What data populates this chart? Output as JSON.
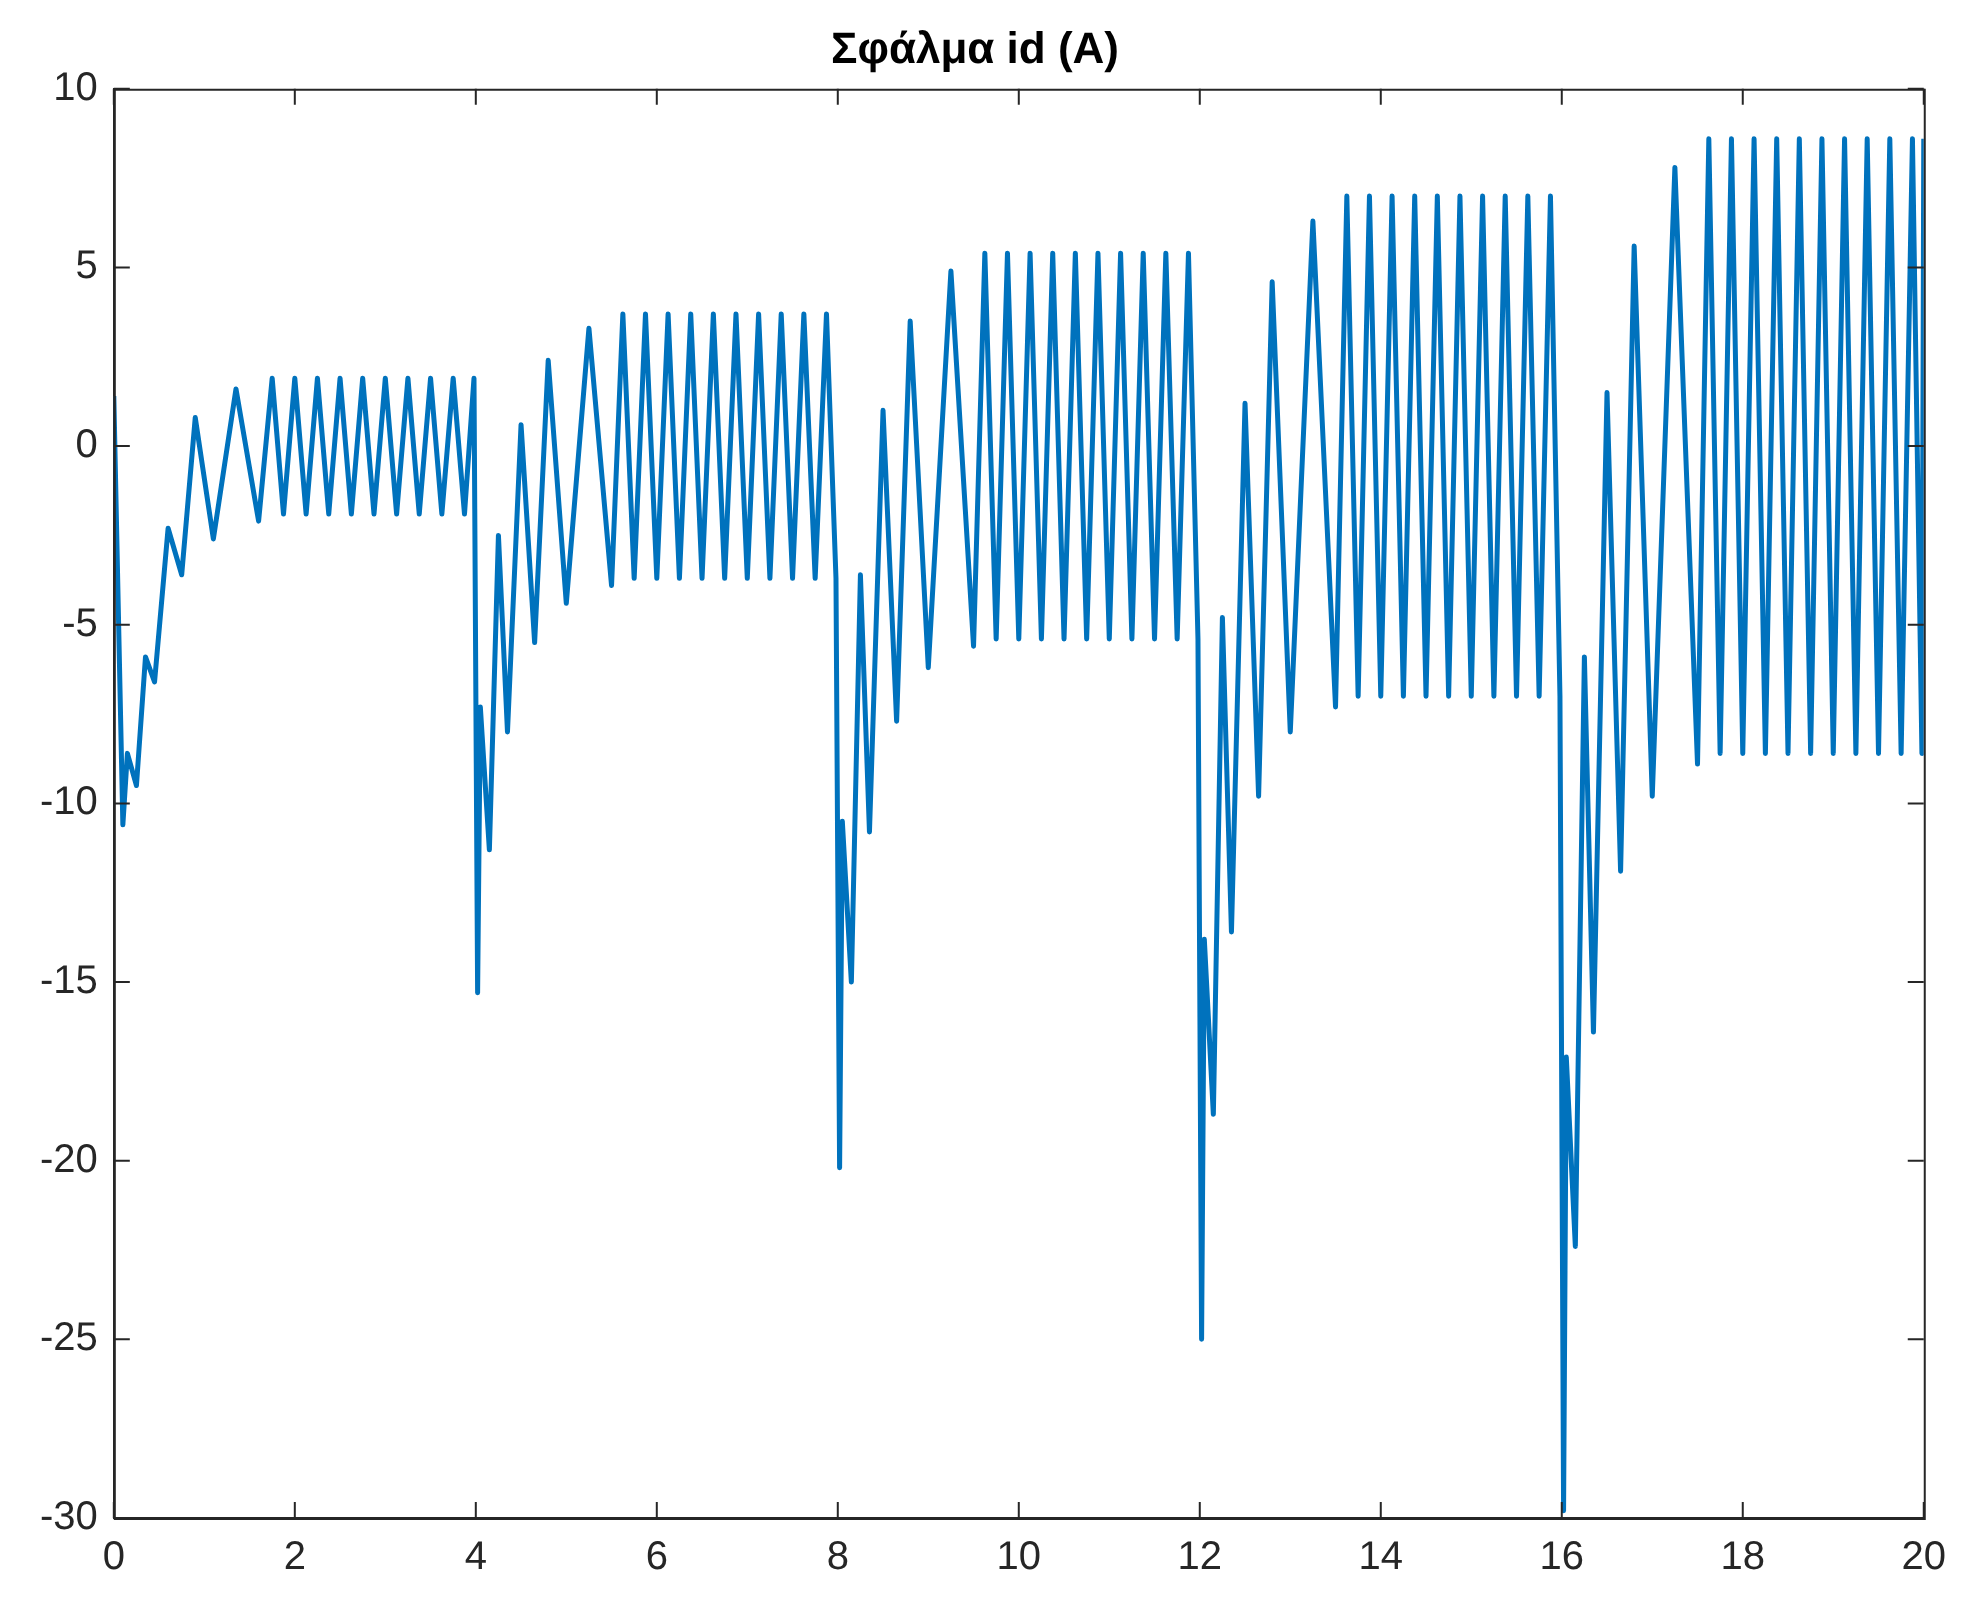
{
  "chart_data": {
    "type": "line",
    "title": "Σφάλμα id (A)",
    "xlim": [
      0,
      20
    ],
    "xticks": [
      0,
      2,
      4,
      6,
      8,
      10,
      12,
      14,
      16,
      18,
      20
    ],
    "ylim": [
      -30,
      10
    ],
    "yticks": [
      -30,
      -25,
      -20,
      -15,
      -10,
      -5,
      0,
      5,
      10
    ],
    "grid": false,
    "legend": false,
    "marker": "none",
    "line_style": "solid",
    "series": [
      {
        "color": "#0072bd",
        "x": [
          0,
          0.1,
          0.15,
          0.25,
          0.35,
          0.45,
          0.6,
          0.75,
          0.9,
          1.1,
          1.35,
          1.6,
          1.75,
          1.875,
          2,
          2.125,
          2.25,
          2.375,
          2.5,
          2.625,
          2.75,
          2.875,
          3,
          3.125,
          3.25,
          3.375,
          3.5,
          3.625,
          3.75,
          3.875,
          3.98,
          4.02,
          4.05,
          4.15,
          4.25,
          4.35,
          4.5,
          4.65,
          4.8,
          5,
          5.25,
          5.5,
          5.625,
          5.75,
          5.875,
          6,
          6.125,
          6.25,
          6.375,
          6.5,
          6.625,
          6.75,
          6.875,
          7,
          7.125,
          7.25,
          7.375,
          7.5,
          7.625,
          7.75,
          7.875,
          7.98,
          8.02,
          8.05,
          8.15,
          8.25,
          8.35,
          8.5,
          8.65,
          8.8,
          9,
          9.25,
          9.5,
          9.625,
          9.75,
          9.875,
          10,
          10.125,
          10.25,
          10.375,
          10.5,
          10.625,
          10.75,
          10.875,
          11,
          11.125,
          11.25,
          11.375,
          11.5,
          11.625,
          11.75,
          11.875,
          11.98,
          12.02,
          12.05,
          12.15,
          12.25,
          12.35,
          12.5,
          12.65,
          12.8,
          13,
          13.25,
          13.5,
          13.625,
          13.75,
          13.875,
          14,
          14.125,
          14.25,
          14.375,
          14.5,
          14.625,
          14.75,
          14.875,
          15,
          15.125,
          15.25,
          15.375,
          15.5,
          15.625,
          15.75,
          15.875,
          15.98,
          16.02,
          16.05,
          16.15,
          16.25,
          16.35,
          16.5,
          16.65,
          16.8,
          17,
          17.25,
          17.5,
          17.625,
          17.75,
          17.875,
          18,
          18.125,
          18.25,
          18.375,
          18.5,
          18.625,
          18.75,
          18.875,
          19,
          19.125,
          19.25,
          19.375,
          19.5,
          19.625,
          19.75,
          19.875,
          19.98,
          20
        ],
        "values": [
          1.4,
          -10.6,
          -8.6,
          -9.5,
          -5.9,
          -6.6,
          -2.3,
          -3.6,
          0.8,
          -2.6,
          1.6,
          -2.1,
          1.9,
          -1.9,
          1.9,
          -1.9,
          1.9,
          -1.9,
          1.9,
          -1.9,
          1.9,
          -1.9,
          1.9,
          -1.9,
          1.9,
          -1.9,
          1.9,
          -1.9,
          1.9,
          -1.9,
          1.9,
          -15.3,
          -7.3,
          -11.3,
          -2.5,
          -8.0,
          0.6,
          -5.5,
          2.4,
          -4.4,
          3.3,
          -3.9,
          3.7,
          -3.7,
          3.7,
          -3.7,
          3.7,
          -3.7,
          3.7,
          -3.7,
          3.7,
          -3.7,
          3.7,
          -3.7,
          3.7,
          -3.7,
          3.7,
          -3.7,
          3.7,
          -3.7,
          3.7,
          -3.7,
          -20.2,
          -10.5,
          -15.0,
          -3.6,
          -10.8,
          1.0,
          -7.7,
          3.5,
          -6.2,
          4.9,
          -5.6,
          5.4,
          -5.4,
          5.4,
          -5.4,
          5.4,
          -5.4,
          5.4,
          -5.4,
          5.4,
          -5.4,
          5.4,
          -5.4,
          5.4,
          -5.4,
          5.4,
          -5.4,
          5.4,
          -5.4,
          5.4,
          -5.4,
          -25,
          -13.8,
          -18.7,
          -4.8,
          -13.6,
          1.2,
          -9.8,
          4.6,
          -8.0,
          6.3,
          -7.3,
          7.0,
          -7.0,
          7.0,
          -7.0,
          7.0,
          -7.0,
          7.0,
          -7.0,
          7.0,
          -7.0,
          7.0,
          -7.0,
          7.0,
          -7.0,
          7.0,
          -7.0,
          7.0,
          -7.0,
          7.0,
          -7.0,
          -29.8,
          -17.1,
          -22.4,
          -5.9,
          -16.4,
          1.5,
          -11.9,
          5.6,
          -9.8,
          7.8,
          -8.9,
          8.6,
          -8.6,
          8.6,
          -8.6,
          8.6,
          -8.6,
          8.6,
          -8.6,
          8.6,
          -8.6,
          8.6,
          -8.6,
          8.6,
          -8.6,
          8.6,
          -8.6,
          8.6,
          -8.6,
          8.6,
          -8.6,
          8.6
        ]
      }
    ]
  }
}
